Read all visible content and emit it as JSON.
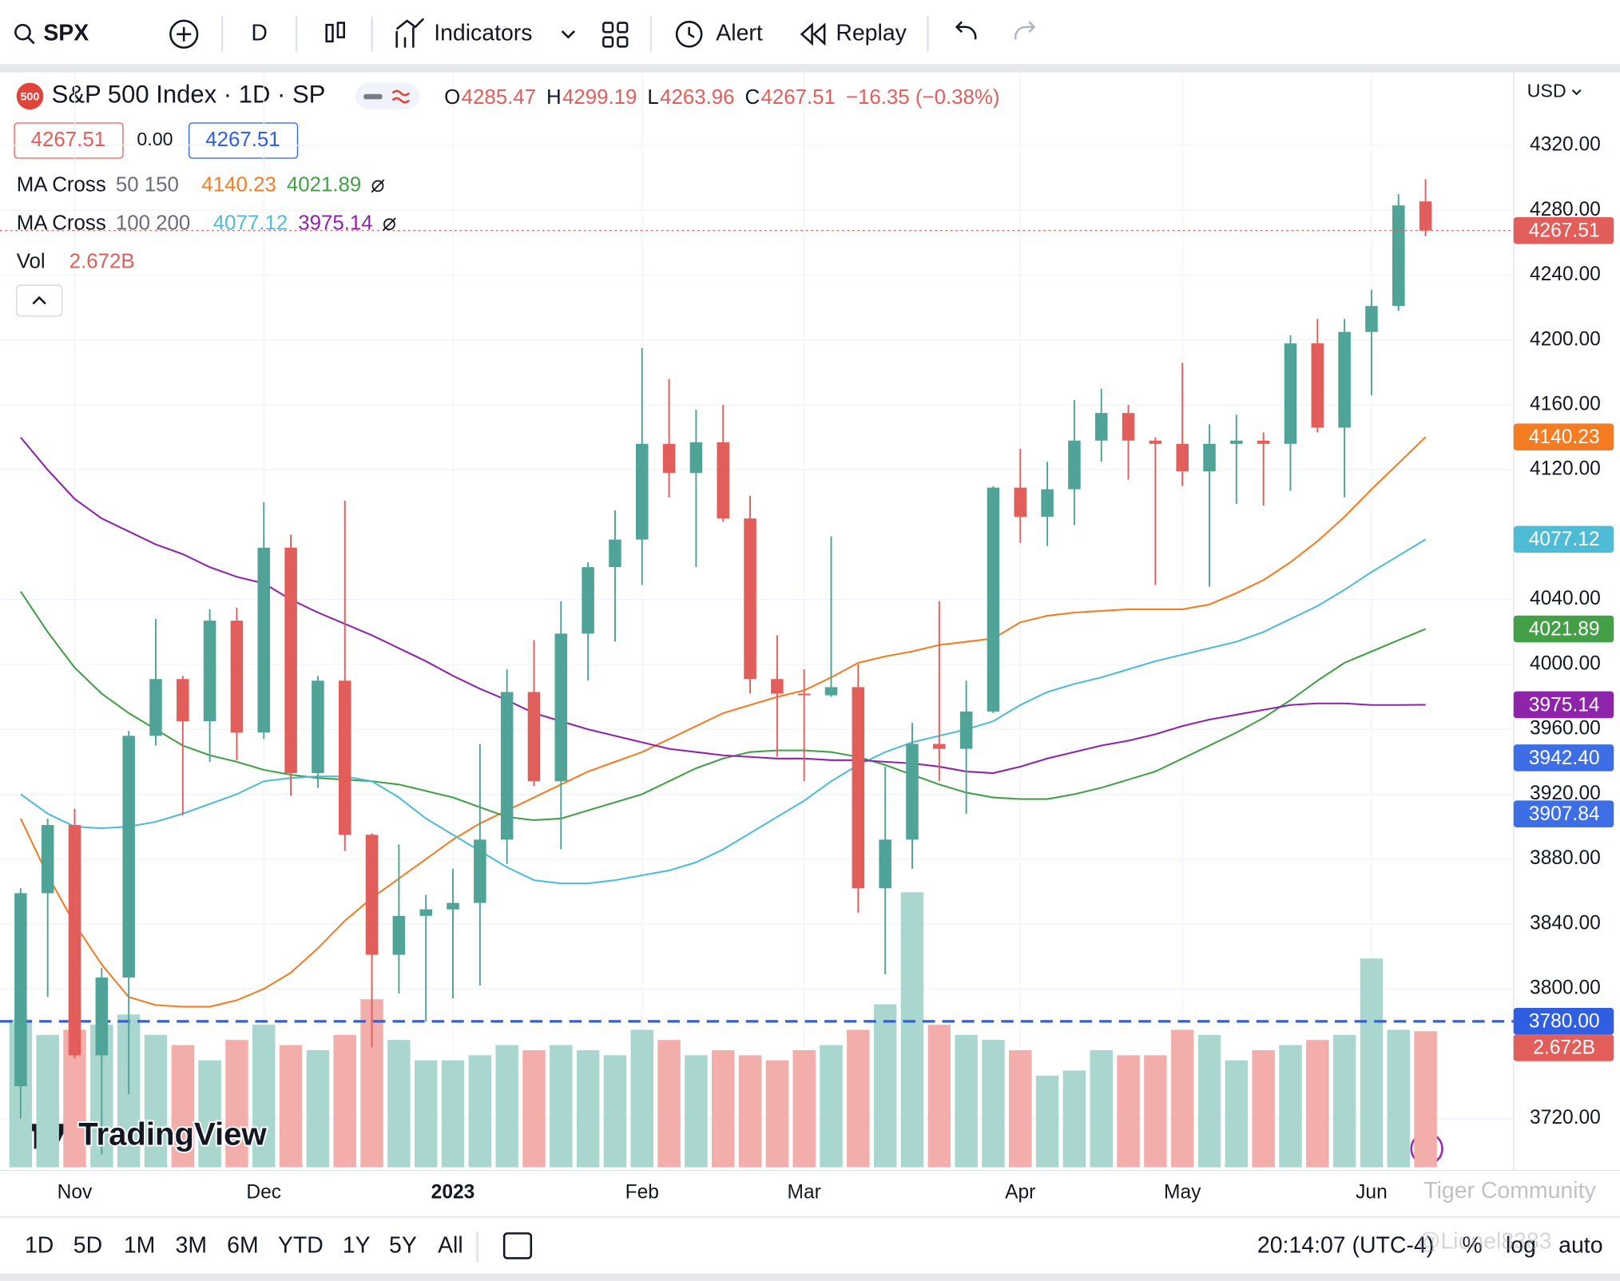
{
  "toolbar": {
    "symbol": "SPX",
    "interval": "D",
    "indicators": "Indicators",
    "alert": "Alert",
    "replay": "Replay"
  },
  "chart_data": {
    "type": "candlestick",
    "logo": "500",
    "title": "S&P 500 Index · 1D · SP",
    "currency": "USD",
    "ohlc_labels": [
      "O",
      "H",
      "L",
      "C"
    ],
    "change": "−16.35 (−0.38%)",
    "spread": "0.00",
    "up_color": "#4fa397",
    "down_color": "#e25e5a",
    "volume_up_color": "#a9d6cf",
    "volume_down_color": "#f3aeab",
    "categories": [
      null,
      null,
      "Nov",
      null,
      null,
      null,
      null,
      null,
      null,
      "Dec",
      null,
      null,
      null,
      null,
      null,
      null,
      "2023",
      null,
      null,
      null,
      null,
      null,
      null,
      "Feb",
      null,
      null,
      null,
      null,
      null,
      "Mar",
      null,
      null,
      null,
      null,
      null,
      null,
      null,
      "Apr",
      null,
      null,
      null,
      null,
      null,
      "May",
      null,
      null,
      null,
      null,
      null,
      null,
      "Jun",
      null,
      null
    ],
    "open": [
      3740,
      3859,
      3901,
      3759,
      3807,
      3956,
      3991,
      3965,
      4027,
      3958,
      4072,
      3933,
      3990,
      3895,
      3821,
      3845,
      3849,
      3853,
      3892,
      3983,
      3928,
      4019,
      4060,
      4077,
      4136,
      4118,
      4137,
      4090,
      3991,
      3982,
      3981,
      3986,
      3862,
      3892,
      3951,
      3948,
      3971,
      4109,
      4091,
      4108,
      4138,
      4155,
      4138,
      4136,
      4119,
      4136,
      4138,
      4136,
      4198,
      4146,
      4205,
      4221,
      4285.47
    ],
    "high": [
      3862,
      3905,
      3911,
      3813,
      3959,
      4028,
      3993,
      4034,
      4035,
      4100,
      4080,
      3993,
      4101,
      3896,
      3889,
      3858,
      3874,
      3951,
      3997,
      4015,
      4039,
      4063,
      4095,
      4195,
      4176,
      4157,
      4160,
      4104,
      4018,
      3997,
      4079,
      4000,
      3937,
      3964,
      4039,
      3990,
      4110,
      4133,
      4125,
      4163,
      4170,
      4160,
      4140,
      4186,
      4148,
      4154,
      4143,
      4203,
      4213,
      4213,
      4231,
      4290,
      4299.19
    ],
    "low": [
      3720,
      3795,
      3757,
      3698,
      3735,
      3950,
      3907,
      3940,
      3941,
      3954,
      3919,
      3924,
      3885,
      3764,
      3797,
      3780,
      3794,
      3802,
      3877,
      3925,
      3886,
      3990,
      4014,
      4049,
      4103,
      4060,
      4088,
      3982,
      3943,
      3928,
      3980,
      3847,
      3809,
      3874,
      3928,
      3908,
      3970,
      4075,
      4073,
      4086,
      4125,
      4114,
      4049,
      4110,
      4048,
      4099,
      4098,
      4107,
      4143,
      4103,
      4166,
      4218,
      4263.96
    ],
    "close": [
      3859,
      3901,
      3759,
      3807,
      3956,
      3991,
      3965,
      4027,
      3958,
      4072,
      3933,
      3990,
      3895,
      3821,
      3845,
      3849,
      3853,
      3892,
      3983,
      3928,
      4019,
      4060,
      4077,
      4136,
      4118,
      4137,
      4090,
      3991,
      3982,
      3981,
      3986,
      3862,
      3892,
      3951,
      3948,
      3971,
      4109,
      4091,
      4108,
      4138,
      4155,
      4138,
      4136,
      4119,
      4136,
      4138,
      4136,
      4198,
      4146,
      4205,
      4221,
      4283,
      4267.51
    ],
    "volume": {
      "name": "Vol",
      "values": [
        2.9,
        2.6,
        2.7,
        2.8,
        3.0,
        2.6,
        2.4,
        2.1,
        2.5,
        2.8,
        2.4,
        2.3,
        2.6,
        3.3,
        2.5,
        2.1,
        2.1,
        2.2,
        2.4,
        2.3,
        2.4,
        2.3,
        2.2,
        2.7,
        2.5,
        2.2,
        2.3,
        2.2,
        2.1,
        2.3,
        2.4,
        2.7,
        3.2,
        5.4,
        2.8,
        2.6,
        2.5,
        2.3,
        1.8,
        1.9,
        2.3,
        2.2,
        2.2,
        2.7,
        2.6,
        2.1,
        2.3,
        2.4,
        2.5,
        2.6,
        4.1,
        2.7,
        2.672
      ],
      "last_label": "2.672B",
      "vlim": [
        0,
        21.5
      ]
    },
    "indicators": [
      {
        "name": "MA Cross",
        "params": "50 150",
        "lines": [
          {
            "color": "#f57c20",
            "values": [
              3905,
              3870,
              3840,
              3815,
              3795,
              3790,
              3789,
              3789,
              3793,
              3800,
              3810,
              3825,
              3842,
              3856,
              3868,
              3880,
              3892,
              3902,
              3910,
              3918,
              3926,
              3934,
              3940,
              3946,
              3954,
              3962,
              3970,
              3975,
              3980,
              3984,
              3992,
              4001,
              4005,
              4008,
              4012,
              4014,
              4016,
              4026,
              4030,
              4032,
              4033,
              4034,
              4034,
              4034,
              4037,
              4044,
              4052,
              4063,
              4076,
              4091,
              4108,
              4124,
              4140.23
            ]
          },
          {
            "color": "#43a047",
            "values": [
              4045,
              4020,
              3998,
              3982,
              3970,
              3960,
              3950,
              3944,
              3940,
              3935,
              3932,
              3930,
              3929,
              3928,
              3926,
              3922,
              3918,
              3912,
              3906,
              3904,
              3905,
              3910,
              3915,
              3920,
              3928,
              3936,
              3942,
              3946,
              3947,
              3947,
              3946,
              3943,
              3938,
              3932,
              3926,
              3921,
              3918,
              3917,
              3917,
              3920,
              3924,
              3929,
              3934,
              3942,
              3950,
              3958,
              3967,
              3978,
              3990,
              4001,
              4008,
              4015,
              4021.89
            ]
          }
        ]
      },
      {
        "name": "MA Cross",
        "params": "100 200",
        "lines": [
          {
            "color": "#4fbcd6",
            "values": [
              3920,
              3908,
              3900,
              3899,
              3900,
              3903,
              3908,
              3914,
              3920,
              3928,
              3930,
              3931,
              3931,
              3928,
              3918,
              3905,
              3895,
              3885,
              3875,
              3867,
              3865,
              3865,
              3867,
              3870,
              3873,
              3878,
              3886,
              3896,
              3906,
              3916,
              3928,
              3938,
              3946,
              3952,
              3956,
              3960,
              3965,
              3975,
              3983,
              3988,
              3992,
              3997,
              4002,
              4006,
              4010,
              4014,
              4020,
              4028,
              4036,
              4046,
              4057,
              4067,
              4077.12
            ]
          },
          {
            "color": "#8e24aa",
            "values": [
              4140,
              4120,
              4102,
              4090,
              4082,
              4074,
              4068,
              4060,
              4054,
              4050,
              4040,
              4032,
              4025,
              4018,
              4010,
              4002,
              3993,
              3985,
              3978,
              3970,
              3965,
              3960,
              3956,
              3952,
              3948,
              3946,
              3944,
              3943,
              3942,
              3942,
              3941,
              3941,
              3940,
              3939,
              3937,
              3934,
              3933,
              3937,
              3942,
              3946,
              3950,
              3953,
              3957,
              3962,
              3966,
              3969,
              3972,
              3975,
              3976,
              3976,
              3975,
              3975,
              3975.14
            ]
          }
        ]
      }
    ],
    "hline": {
      "value": 3780,
      "label": "3780.00",
      "color": "#2f5fe0"
    },
    "markers": [
      {
        "value": 3942.4,
        "label": "3942.40",
        "color": "#3d6ee6"
      },
      {
        "value": 3907.84,
        "label": "3907.84",
        "color": "#3d6ee6"
      }
    ],
    "ylim": [
      3690,
      4365
    ],
    "yticks": [
      {
        "value": 3720,
        "label": "3720.00"
      },
      {
        "value": 3800,
        "label": "3800.00"
      },
      {
        "value": 3840,
        "label": "3840.00"
      },
      {
        "value": 3880,
        "label": "3880.00"
      },
      {
        "value": 3920,
        "label": "3920.00"
      },
      {
        "value": 3960,
        "label": "3960.00"
      },
      {
        "value": 4000,
        "label": "4000.00"
      },
      {
        "value": 4040,
        "label": "4040.00"
      },
      {
        "value": 4120,
        "label": "4120.00"
      },
      {
        "value": 4160,
        "label": "4160.00"
      },
      {
        "value": 4200,
        "label": "4200.00"
      },
      {
        "value": 4240,
        "label": "4240.00"
      },
      {
        "value": 4280,
        "label": "4280.00"
      },
      {
        "value": 4320,
        "label": "4320.00"
      }
    ],
    "grid": true,
    "brand": "TradingView"
  },
  "bottom_bar": {
    "ranges": [
      "1D",
      "5D",
      "1M",
      "3M",
      "6M",
      "YTD",
      "1Y",
      "5Y",
      "All"
    ],
    "time": "20:14:07 (UTC-4)",
    "percent": "%",
    "log": "log",
    "auto": "auto"
  },
  "watermark": [
    "Tiger Community",
    "@Lionel8383"
  ]
}
